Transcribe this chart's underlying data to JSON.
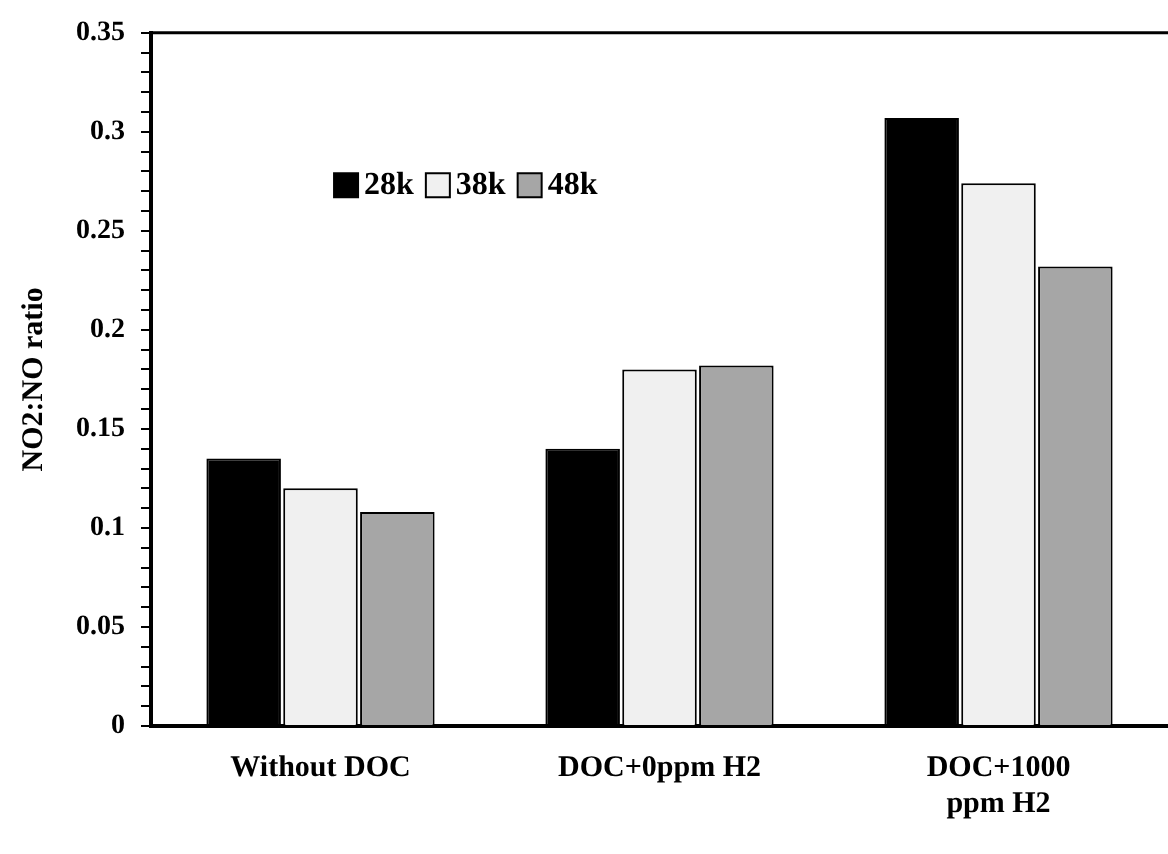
{
  "chart_data": {
    "type": "bar",
    "ylabel": "NO2:NO ratio",
    "categories": [
      "Without DOC",
      "DOC+0ppm H2",
      "DOC+1000 ppm H2"
    ],
    "series": [
      {
        "name": "28k",
        "color": "#000000",
        "values": [
          0.135,
          0.14,
          0.307
        ]
      },
      {
        "name": "38k",
        "color": "#f0f0f0",
        "values": [
          0.12,
          0.18,
          0.274
        ]
      },
      {
        "name": "48k",
        "color": "#a6a6a6",
        "values": [
          0.108,
          0.182,
          0.232
        ]
      }
    ],
    "ylim": [
      0,
      0.35
    ],
    "yticks": [
      0,
      {
        "value": 0.01,
        "label": null
      },
      {
        "value": 0.02,
        "label": null
      },
      {
        "value": 0.03,
        "label": null
      },
      {
        "value": 0.04,
        "label": null
      },
      0.05,
      {
        "value": 0.06,
        "label": null
      },
      {
        "value": 0.07,
        "label": null
      },
      {
        "value": 0.08,
        "label": null
      },
      {
        "value": 0.09,
        "label": null
      },
      0.1,
      {
        "value": 0.11,
        "label": null
      },
      {
        "value": 0.12,
        "label": null
      },
      {
        "value": 0.13,
        "label": null
      },
      {
        "value": 0.14,
        "label": null
      },
      0.15,
      {
        "value": 0.16,
        "label": null
      },
      {
        "value": 0.17,
        "label": null
      },
      {
        "value": 0.18,
        "label": null
      },
      {
        "value": 0.19,
        "label": null
      },
      0.2,
      {
        "value": 0.21,
        "label": null
      },
      {
        "value": 0.22,
        "label": null
      },
      {
        "value": 0.23,
        "label": null
      },
      {
        "value": 0.24,
        "label": null
      },
      0.25,
      {
        "value": 0.26,
        "label": null
      },
      {
        "value": 0.27,
        "label": null
      },
      {
        "value": 0.28,
        "label": null
      },
      {
        "value": 0.29,
        "label": null
      },
      0.3,
      {
        "value": 0.31,
        "label": null
      },
      {
        "value": 0.32,
        "label": null
      },
      {
        "value": 0.33,
        "label": null
      },
      {
        "value": 0.34,
        "label": null
      },
      0.35
    ],
    "grid": false,
    "legend": "top left"
  }
}
